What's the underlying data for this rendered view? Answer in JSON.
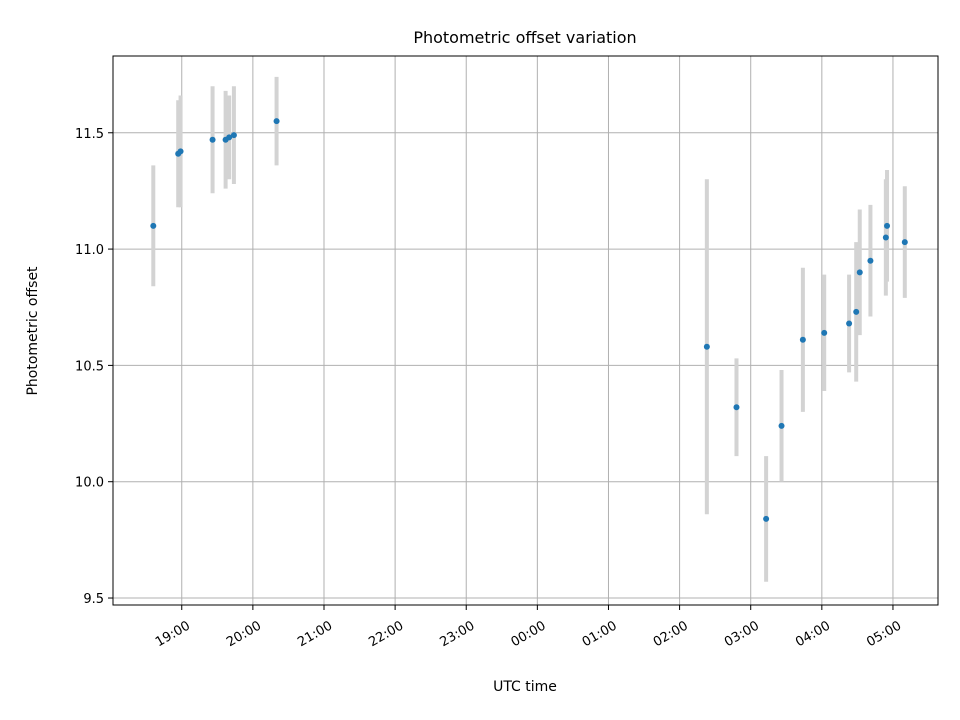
{
  "chart_data": {
    "type": "scatter",
    "title": "Photometric offset variation",
    "xlabel": "UTC time",
    "ylabel": "Photometric offset",
    "xlim": [
      "18:02",
      "05:38"
    ],
    "ylim": [
      9.47,
      11.83
    ],
    "grid": true,
    "x_ticks": [
      "19:00",
      "20:00",
      "21:00",
      "22:00",
      "23:00",
      "00:00",
      "01:00",
      "02:00",
      "03:00",
      "04:00",
      "05:00"
    ],
    "y_ticks": [
      "9.5",
      "10.0",
      "10.5",
      "11.0",
      "11.5"
    ],
    "colors": {
      "marker": "#1f77b4",
      "errorbar": "#d3d3d3",
      "grid": "#b0b0b0"
    },
    "series": [
      {
        "points": [
          {
            "t": "18:36",
            "y": 11.1,
            "err": 0.26
          },
          {
            "t": "18:57",
            "y": 11.41,
            "err": 0.23
          },
          {
            "t": "18:59",
            "y": 11.42,
            "err": 0.24
          },
          {
            "t": "19:26",
            "y": 11.47,
            "err": 0.23
          },
          {
            "t": "19:37",
            "y": 11.47,
            "err": 0.21
          },
          {
            "t": "19:40",
            "y": 11.48,
            "err": 0.18
          },
          {
            "t": "19:44",
            "y": 11.49,
            "err": 0.21
          },
          {
            "t": "20:20",
            "y": 11.55,
            "err": 0.19
          },
          {
            "t": "02:23",
            "y": 10.58,
            "err": 0.72
          },
          {
            "t": "02:48",
            "y": 10.32,
            "err": 0.21
          },
          {
            "t": "03:13",
            "y": 9.84,
            "err": 0.27
          },
          {
            "t": "03:26",
            "y": 10.24,
            "err": 0.24
          },
          {
            "t": "03:44",
            "y": 10.61,
            "err": 0.31
          },
          {
            "t": "04:02",
            "y": 10.64,
            "err": 0.25
          },
          {
            "t": "04:23",
            "y": 10.68,
            "err": 0.21
          },
          {
            "t": "04:29",
            "y": 10.73,
            "err": 0.3
          },
          {
            "t": "04:32",
            "y": 10.9,
            "err": 0.27
          },
          {
            "t": "04:41",
            "y": 10.95,
            "err": 0.24
          },
          {
            "t": "04:54",
            "y": 11.05,
            "err": 0.25
          },
          {
            "t": "04:55",
            "y": 11.1,
            "err": 0.24
          },
          {
            "t": "05:10",
            "y": 11.03,
            "err": 0.24
          }
        ]
      }
    ]
  }
}
